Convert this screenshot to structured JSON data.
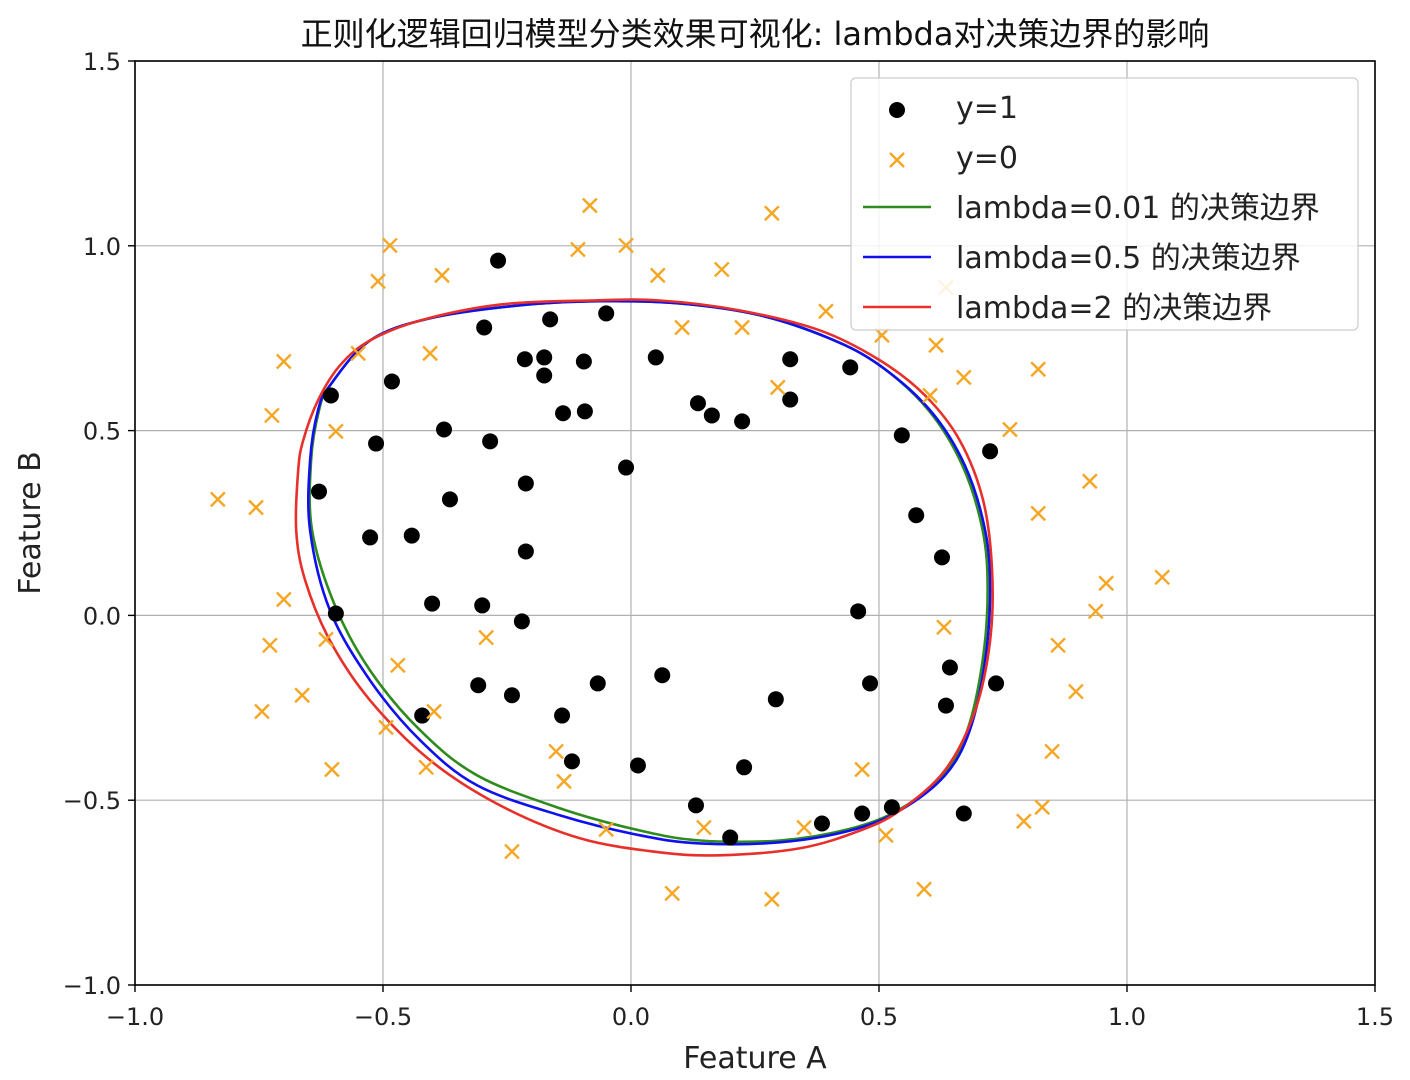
{
  "chart_data": {
    "type": "scatter",
    "title": "正则化逻辑回归模型分类效果可视化: lambda对决策边界的影响",
    "xlabel": "Feature A",
    "ylabel": "Feature B",
    "xlim": [
      -1.0,
      1.5
    ],
    "ylim": [
      -1.0,
      1.5
    ],
    "xticks": [
      -1.0,
      -0.5,
      0.0,
      0.5,
      1.0,
      1.5
    ],
    "yticks": [
      -1.0,
      -0.5,
      0.0,
      0.5,
      1.0,
      1.5
    ],
    "xtick_labels": [
      "−1.0",
      "−0.5",
      "0.0",
      "0.5",
      "1.0",
      "1.5"
    ],
    "ytick_labels": [
      "−1.0",
      "−0.5",
      "0.0",
      "0.5",
      "1.0",
      "1.5"
    ],
    "grid": true,
    "legend_position": "top-right",
    "series": [
      {
        "name": "y=1",
        "kind": "scatter",
        "marker": "circle",
        "color": "#000000",
        "points": [
          [
            -0.268,
            0.96
          ],
          [
            -0.296,
            0.779
          ],
          [
            -0.163,
            0.801
          ],
          [
            -0.05,
            0.817
          ],
          [
            -0.214,
            0.693
          ],
          [
            -0.175,
            0.698
          ],
          [
            -0.175,
            0.649
          ],
          [
            -0.095,
            0.687
          ],
          [
            0.05,
            0.698
          ],
          [
            -0.605,
            0.595
          ],
          [
            -0.482,
            0.633
          ],
          [
            -0.137,
            0.547
          ],
          [
            -0.093,
            0.552
          ],
          [
            0.135,
            0.574
          ],
          [
            0.163,
            0.541
          ],
          [
            0.224,
            0.525
          ],
          [
            0.321,
            0.693
          ],
          [
            0.321,
            0.584
          ],
          [
            0.442,
            0.671
          ],
          [
            -0.514,
            0.465
          ],
          [
            -0.377,
            0.503
          ],
          [
            -0.284,
            0.471
          ],
          [
            -0.01,
            0.4
          ],
          [
            0.546,
            0.487
          ],
          [
            0.724,
            0.444
          ],
          [
            -0.629,
            0.335
          ],
          [
            -0.365,
            0.314
          ],
          [
            -0.212,
            0.357
          ],
          [
            -0.526,
            0.211
          ],
          [
            -0.442,
            0.216
          ],
          [
            -0.212,
            0.173
          ],
          [
            0.575,
            0.271
          ],
          [
            0.627,
            0.157
          ],
          [
            -0.595,
            0.005
          ],
          [
            -0.401,
            0.032
          ],
          [
            -0.3,
            0.027
          ],
          [
            -0.22,
            -0.016
          ],
          [
            0.458,
            0.011
          ],
          [
            0.643,
            -0.141
          ],
          [
            0.736,
            -0.184
          ],
          [
            -0.308,
            -0.189
          ],
          [
            -0.24,
            -0.216
          ],
          [
            -0.067,
            -0.184
          ],
          [
            0.063,
            -0.162
          ],
          [
            0.482,
            -0.184
          ],
          [
            -0.139,
            -0.271
          ],
          [
            -0.421,
            -0.271
          ],
          [
            0.292,
            -0.227
          ],
          [
            0.635,
            -0.244
          ],
          [
            -0.119,
            -0.395
          ],
          [
            0.014,
            -0.406
          ],
          [
            0.228,
            -0.411
          ],
          [
            0.131,
            -0.514
          ],
          [
            0.2,
            -0.601
          ],
          [
            0.385,
            -0.563
          ],
          [
            0.466,
            -0.536
          ],
          [
            0.526,
            -0.519
          ],
          [
            0.671,
            -0.536
          ]
        ]
      },
      {
        "name": "y=0",
        "kind": "scatter",
        "marker": "x",
        "color": "#f5a623",
        "points": [
          [
            -0.083,
            1.109
          ],
          [
            0.284,
            1.088
          ],
          [
            -0.486,
            1.001
          ],
          [
            -0.107,
            0.99
          ],
          [
            -0.01,
            1.001
          ],
          [
            -0.51,
            0.904
          ],
          [
            -0.381,
            0.92
          ],
          [
            0.054,
            0.92
          ],
          [
            0.183,
            0.936
          ],
          [
            0.635,
            0.887
          ],
          [
            0.393,
            0.823
          ],
          [
            0.103,
            0.779
          ],
          [
            0.224,
            0.779
          ],
          [
            -0.55,
            0.709
          ],
          [
            -0.405,
            0.709
          ],
          [
            -0.7,
            0.687
          ],
          [
            0.506,
            0.758
          ],
          [
            0.615,
            0.731
          ],
          [
            0.671,
            0.644
          ],
          [
            0.821,
            0.666
          ],
          [
            0.296,
            0.617
          ],
          [
            0.603,
            0.595
          ],
          [
            -0.724,
            0.541
          ],
          [
            -0.595,
            0.498
          ],
          [
            0.764,
            0.503
          ],
          [
            -0.833,
            0.314
          ],
          [
            -0.756,
            0.292
          ],
          [
            0.925,
            0.363
          ],
          [
            0.821,
            0.276
          ],
          [
            1.071,
            0.103
          ],
          [
            0.958,
            0.087
          ],
          [
            0.937,
            0.011
          ],
          [
            -0.7,
            0.043
          ],
          [
            -0.728,
            -0.081
          ],
          [
            -0.615,
            -0.065
          ],
          [
            -0.292,
            -0.06
          ],
          [
            0.631,
            -0.032
          ],
          [
            0.861,
            -0.081
          ],
          [
            -0.47,
            -0.135
          ],
          [
            -0.663,
            -0.216
          ],
          [
            -0.744,
            -0.26
          ],
          [
            -0.397,
            -0.26
          ],
          [
            0.897,
            -0.206
          ],
          [
            -0.494,
            -0.303
          ],
          [
            -0.151,
            -0.368
          ],
          [
            0.849,
            -0.368
          ],
          [
            -0.603,
            -0.417
          ],
          [
            -0.413,
            -0.411
          ],
          [
            0.466,
            -0.417
          ],
          [
            -0.135,
            -0.449
          ],
          [
            0.829,
            -0.519
          ],
          [
            0.792,
            -0.557
          ],
          [
            -0.05,
            -0.579
          ],
          [
            0.147,
            -0.574
          ],
          [
            0.349,
            -0.574
          ],
          [
            0.514,
            -0.595
          ],
          [
            -0.24,
            -0.639
          ],
          [
            0.083,
            -0.752
          ],
          [
            0.591,
            -0.741
          ],
          [
            0.284,
            -0.768
          ]
        ]
      },
      {
        "name": "lambda=0.01 的决策边界",
        "kind": "boundary",
        "color": "#2e8b1e",
        "points": [
          [
            -0.607,
            0.622
          ],
          [
            -0.526,
            0.744
          ],
          [
            -0.405,
            0.804
          ],
          [
            -0.224,
            0.839
          ],
          [
            -0.063,
            0.85
          ],
          [
            0.099,
            0.844
          ],
          [
            0.26,
            0.812
          ],
          [
            0.401,
            0.749
          ],
          [
            0.502,
            0.676
          ],
          [
            0.6,
            0.555
          ],
          [
            0.668,
            0.406
          ],
          [
            0.709,
            0.23
          ],
          [
            0.719,
            0.068
          ],
          [
            0.709,
            -0.122
          ],
          [
            0.678,
            -0.311
          ],
          [
            0.628,
            -0.433
          ],
          [
            0.54,
            -0.526
          ],
          [
            0.44,
            -0.578
          ],
          [
            0.3,
            -0.609
          ],
          [
            0.139,
            -0.609
          ],
          [
            0.018,
            -0.582
          ],
          [
            -0.143,
            -0.522
          ],
          [
            -0.31,
            -0.433
          ],
          [
            -0.425,
            -0.311
          ],
          [
            -0.526,
            -0.149
          ],
          [
            -0.597,
            0.027
          ],
          [
            -0.643,
            0.23
          ],
          [
            -0.645,
            0.419
          ],
          [
            -0.629,
            0.555
          ]
        ]
      },
      {
        "name": "lambda=0.5 的决策边界",
        "kind": "boundary",
        "color": "#1010ee",
        "points": [
          [
            -0.607,
            0.622
          ],
          [
            -0.526,
            0.744
          ],
          [
            -0.405,
            0.804
          ],
          [
            -0.224,
            0.839
          ],
          [
            -0.063,
            0.85
          ],
          [
            0.099,
            0.844
          ],
          [
            0.26,
            0.812
          ],
          [
            0.401,
            0.749
          ],
          [
            0.502,
            0.676
          ],
          [
            0.603,
            0.555
          ],
          [
            0.673,
            0.406
          ],
          [
            0.714,
            0.23
          ],
          [
            0.724,
            0.068
          ],
          [
            0.714,
            -0.122
          ],
          [
            0.683,
            -0.311
          ],
          [
            0.633,
            -0.433
          ],
          [
            0.542,
            -0.528
          ],
          [
            0.442,
            -0.582
          ],
          [
            0.3,
            -0.614
          ],
          [
            0.139,
            -0.617
          ],
          [
            0.018,
            -0.595
          ],
          [
            -0.143,
            -0.541
          ],
          [
            -0.31,
            -0.46
          ],
          [
            -0.425,
            -0.338
          ],
          [
            -0.526,
            -0.176
          ],
          [
            -0.607,
            0.014
          ],
          [
            -0.647,
            0.23
          ],
          [
            -0.647,
            0.419
          ],
          [
            -0.631,
            0.555
          ]
        ]
      },
      {
        "name": "lambda=2 的决策边界",
        "kind": "boundary",
        "color": "#e8302a",
        "points": [
          [
            -0.587,
            0.676
          ],
          [
            -0.526,
            0.744
          ],
          [
            -0.425,
            0.798
          ],
          [
            -0.264,
            0.841
          ],
          [
            -0.083,
            0.852
          ],
          [
            0.058,
            0.852
          ],
          [
            0.22,
            0.825
          ],
          [
            0.381,
            0.771
          ],
          [
            0.502,
            0.69
          ],
          [
            0.593,
            0.595
          ],
          [
            0.663,
            0.473
          ],
          [
            0.71,
            0.311
          ],
          [
            0.728,
            0.122
          ],
          [
            0.724,
            -0.068
          ],
          [
            0.694,
            -0.257
          ],
          [
            0.633,
            -0.419
          ],
          [
            0.542,
            -0.528
          ],
          [
            0.462,
            -0.582
          ],
          [
            0.341,
            -0.63
          ],
          [
            0.179,
            -0.649
          ],
          [
            0.058,
            -0.641
          ],
          [
            -0.103,
            -0.603
          ],
          [
            -0.264,
            -0.514
          ],
          [
            -0.405,
            -0.392
          ],
          [
            -0.526,
            -0.23
          ],
          [
            -0.607,
            -0.068
          ],
          [
            -0.657,
            0.095
          ],
          [
            -0.675,
            0.23
          ],
          [
            -0.671,
            0.392
          ],
          [
            -0.661,
            0.473
          ],
          [
            -0.631,
            0.582
          ]
        ]
      }
    ]
  }
}
